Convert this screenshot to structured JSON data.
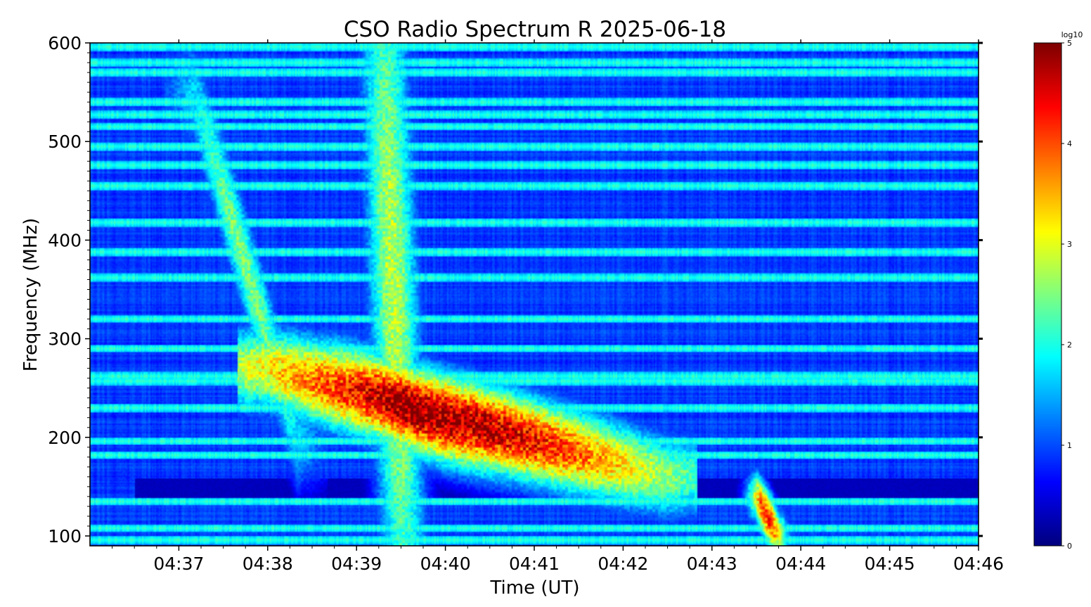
{
  "chart_data": {
    "type": "heatmap",
    "title": "CSO Radio Spectrum R 2025-06-18",
    "xlabel": "Time (UT)",
    "ylabel": "Frequency (MHz)",
    "x_ticks": [
      "04:37",
      "04:38",
      "04:39",
      "04:40",
      "04:41",
      "04:42",
      "04:43",
      "04:44",
      "04:45",
      "04:46"
    ],
    "x_range": [
      "04:36:00",
      "04:46:00"
    ],
    "y_ticks": [
      100,
      200,
      300,
      400,
      500,
      600
    ],
    "ylim": [
      90,
      600
    ],
    "colorbar": {
      "label": "log10",
      "ticks": [
        0,
        1,
        2,
        3,
        4,
        5
      ],
      "range": [
        0,
        5
      ],
      "colormap": "jet",
      "colors": [
        "#00007f",
        "#0000ff",
        "#007fff",
        "#00ffff",
        "#7fff7f",
        "#ffff00",
        "#ff7f00",
        "#ff0000",
        "#7f0000"
      ]
    },
    "background_level": 0.9,
    "features": [
      {
        "kind": "type-II burst (main band)",
        "t_start": "04:38:00",
        "t_end": "04:42:30",
        "f_start": 270,
        "f_end": 160,
        "peak": 4.8
      },
      {
        "kind": "type-II burst (harmonic)",
        "t_start": "04:38:40",
        "t_end": "04:40:50",
        "f_start": 260,
        "f_end": 190,
        "peak": 5.0
      },
      {
        "kind": "broadband burst",
        "t_start": "04:39:05",
        "t_end": "04:39:45",
        "f_start": 600,
        "f_end": 100,
        "peak": 2.8
      },
      {
        "kind": "drifting burst",
        "t_start": "04:37:10",
        "t_end": "04:38:20",
        "f_start": 550,
        "f_end": 200,
        "peak": 2.5
      },
      {
        "kind": "low-frequency burst",
        "t_start": "04:43:30",
        "t_end": "04:43:45",
        "f_start": 140,
        "f_end": 100,
        "peak": 4.2
      }
    ],
    "interference_bands_mhz": [
      596,
      580,
      570,
      540,
      527,
      515,
      495,
      476,
      455,
      418,
      388,
      362,
      320,
      290,
      262,
      257,
      230,
      196,
      182,
      135,
      108,
      96
    ]
  }
}
